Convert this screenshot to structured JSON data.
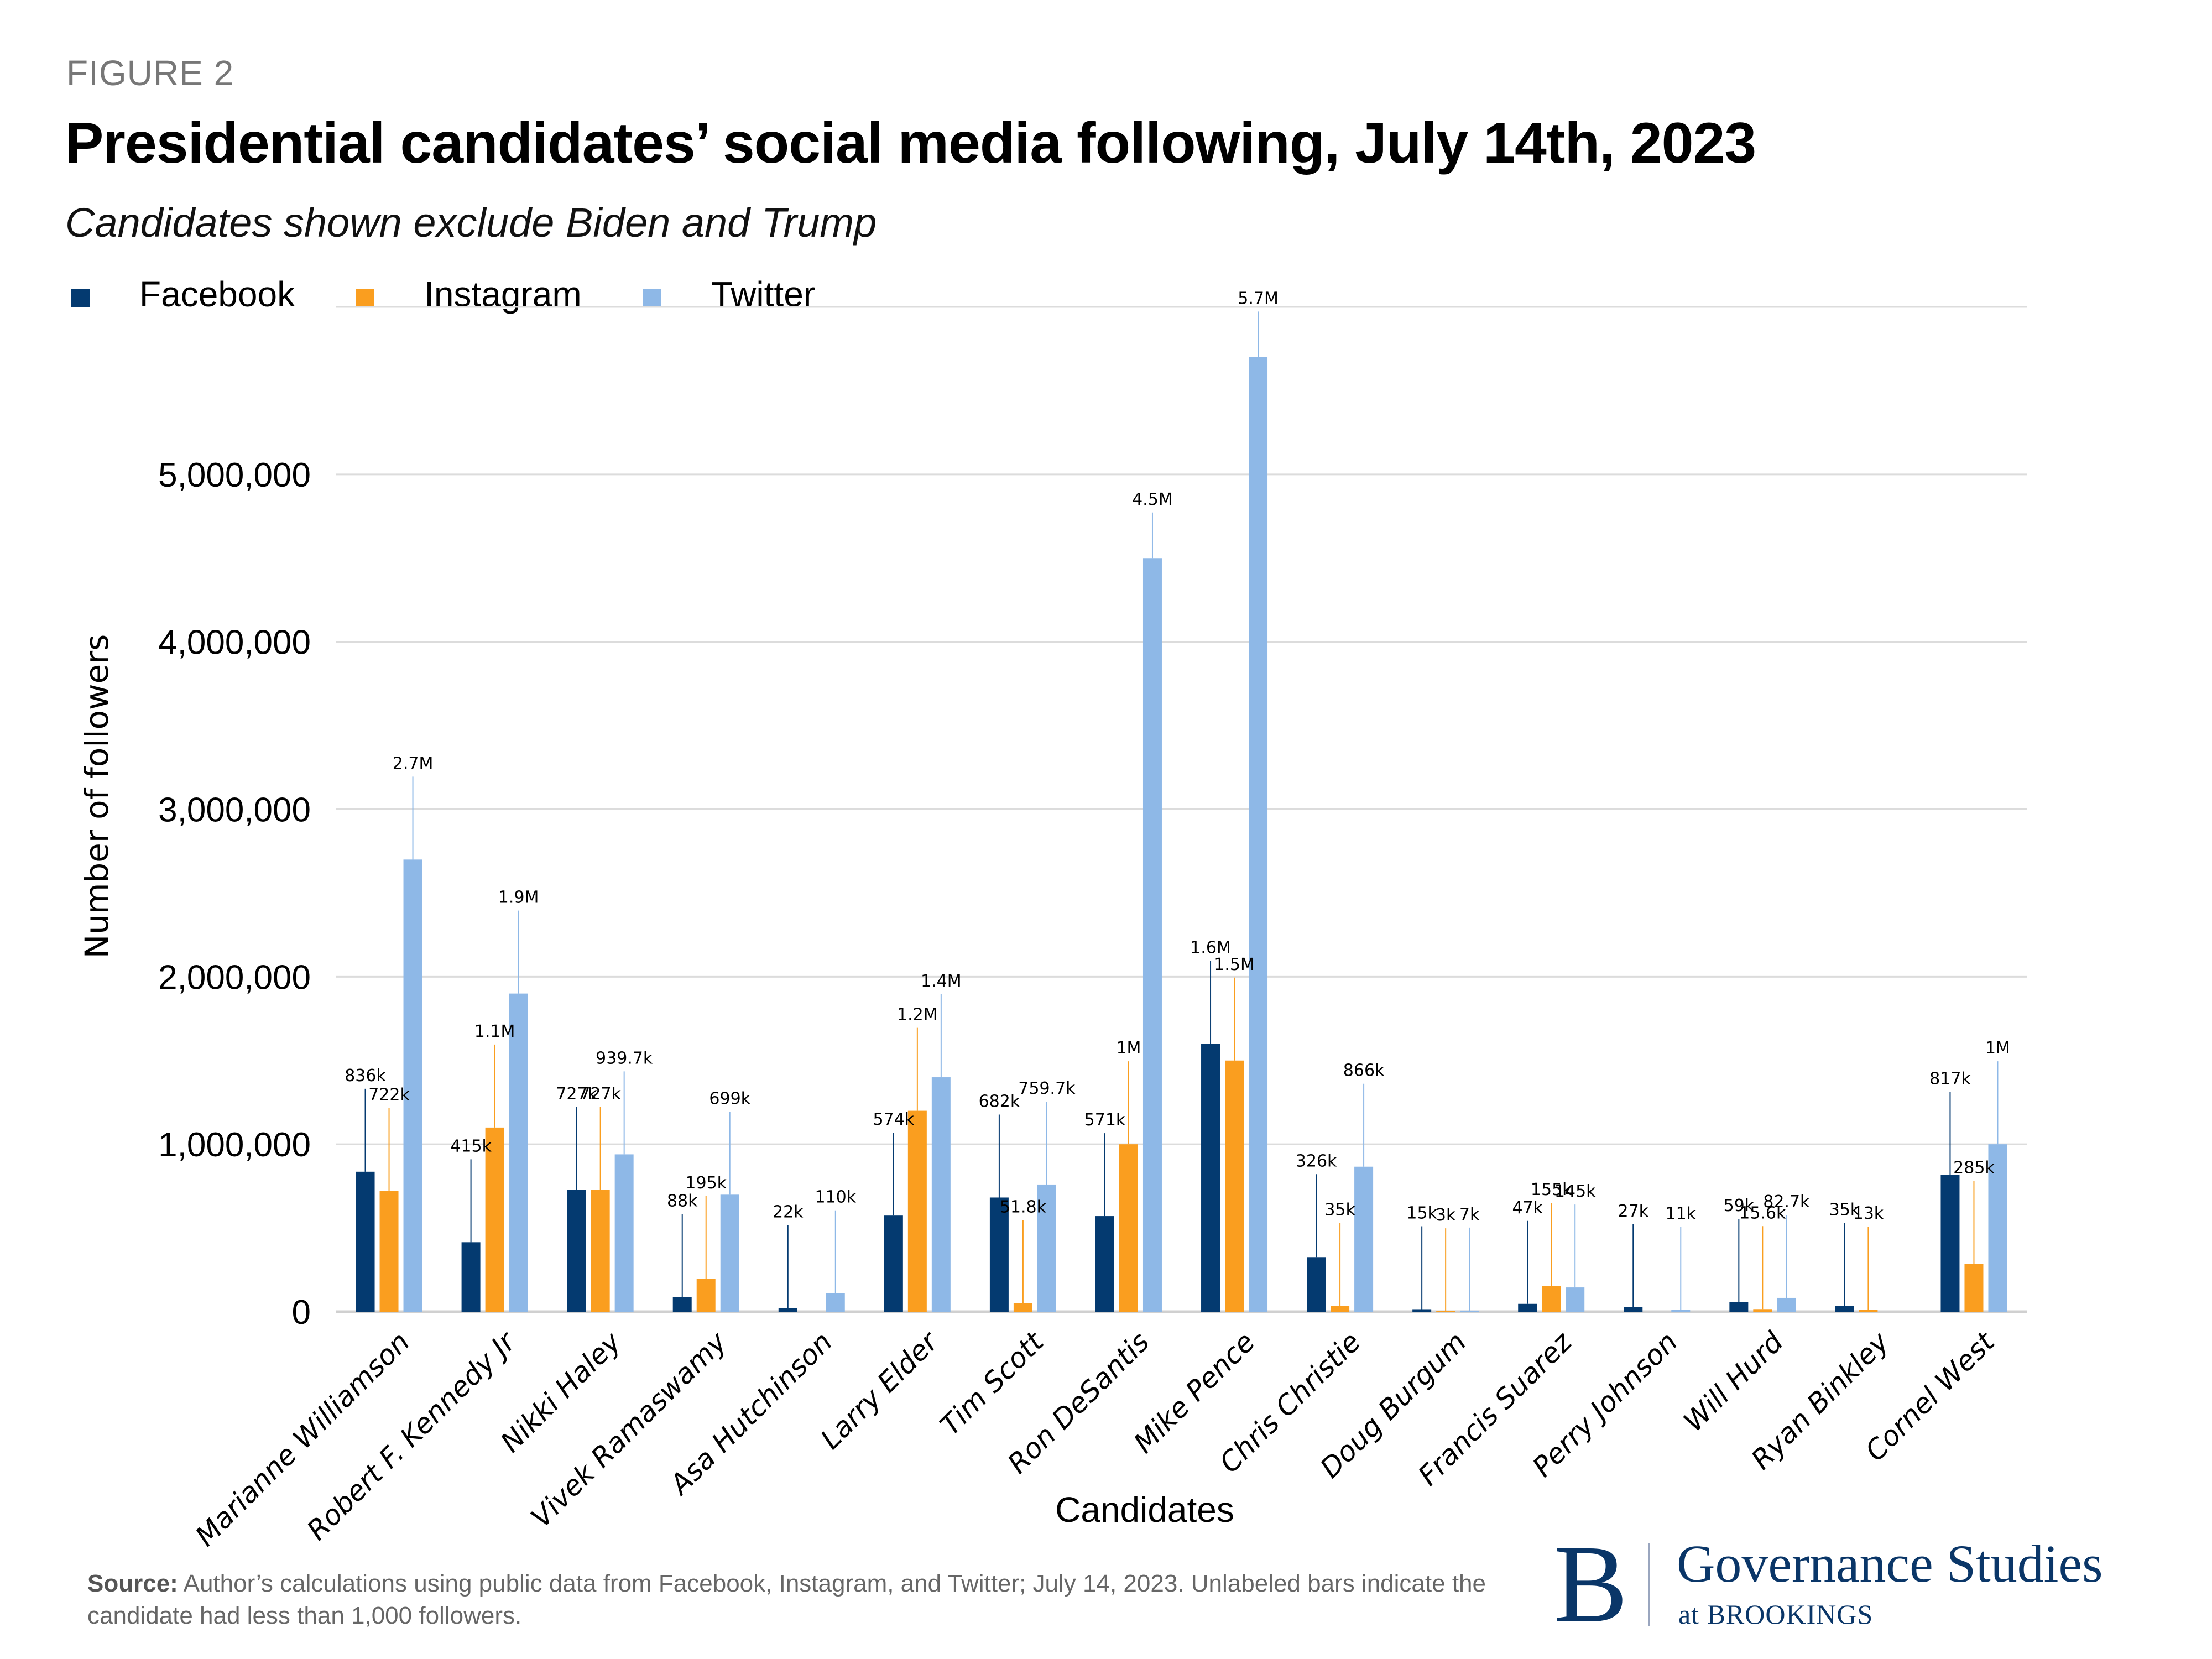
{
  "figure_label": "FIGURE 2",
  "title": "Presidential candidates’ social media following, July 14th, 2023",
  "subtitle": "Candidates shown exclude Biden and Trump",
  "legend": [
    {
      "name": "Facebook",
      "color": "#043a70"
    },
    {
      "name": "Instagram",
      "color": "#fa9e1f"
    },
    {
      "name": "Twitter",
      "color": "#8eb8e7"
    }
  ],
  "source": {
    "label": "Source:",
    "text": "Author’s calculations using public data from Facebook, Instagram, and Twitter; July 14, 2023. Unlabeled bars indicate the candidate had less than 1,000 followers."
  },
  "logo": {
    "initial": "B",
    "main": "Governance Studies",
    "sub": "at BROOKINGS"
  },
  "chart_data": {
    "type": "bar",
    "title": "Presidential candidates’ social media following, July 14th, 2023",
    "subtitle": "Candidates shown exclude Biden and Trump",
    "xlabel": "Candidates",
    "ylabel": "Number of followers",
    "ylim": [
      0,
      6000000
    ],
    "yticks": [
      0,
      1000000,
      2000000,
      3000000,
      4000000,
      5000000
    ],
    "ytick_labels": [
      "0",
      "1,000,000",
      "2,000,000",
      "3,000,000",
      "4,000,000",
      "5,000,000"
    ],
    "gridlines": [
      0,
      1000000,
      2000000,
      3000000,
      4000000,
      5000000,
      6000000
    ],
    "grid": true,
    "legend_position": "top-left",
    "categories": [
      "Marianne Williamson",
      "Robert F. Kennedy Jr",
      "Nikki Haley",
      "Vivek Ramaswamy",
      "Asa Hutchinson",
      "Larry Elder",
      "Tim Scott",
      "Ron DeSantis",
      "Mike Pence",
      "Chris Christie",
      "Doug Burgum",
      "Francis Suarez",
      "Perry Johnson",
      "Will Hurd",
      "Ryan Binkley",
      "Cornel West"
    ],
    "series": [
      {
        "name": "Facebook",
        "color": "#043a70",
        "values": [
          836000,
          415000,
          727000,
          88000,
          22000,
          574000,
          682000,
          571000,
          1600000,
          326000,
          15000,
          47000,
          27000,
          59000,
          35000,
          817000
        ],
        "labels": [
          "836k",
          "415k",
          "727k",
          "88k",
          "22k",
          "574k",
          "682k",
          "571k",
          "1.6M",
          "326k",
          "15k",
          "47k",
          "27k",
          "59k",
          "35k",
          "817k"
        ]
      },
      {
        "name": "Instagram",
        "color": "#fa9e1f",
        "values": [
          722000,
          1100000,
          727000,
          195000,
          0,
          1200000,
          51800,
          1000000,
          1500000,
          35000,
          3000,
          155000,
          0,
          15600,
          13000,
          285000
        ],
        "labels": [
          "722k",
          "1.1M",
          "727k",
          "195k",
          "",
          "1.2M",
          "51.8k",
          "1M",
          "1.5M",
          "35k",
          "3k",
          "155k",
          "",
          "15.6k",
          "13k",
          "285k"
        ]
      },
      {
        "name": "Twitter",
        "color": "#8eb8e7",
        "values": [
          2700000,
          1900000,
          939700,
          699000,
          110000,
          1400000,
          759700,
          4500000,
          5700000,
          866000,
          7000,
          145000,
          11000,
          82700,
          0,
          1000000
        ],
        "labels": [
          "2.7M",
          "1.9M",
          "939.7k",
          "699k",
          "110k",
          "1.4M",
          "759.7k",
          "4.5M",
          "5.7M",
          "866k",
          "7k",
          "145k",
          "11k",
          "82.7k",
          "",
          "1M"
        ]
      }
    ]
  }
}
